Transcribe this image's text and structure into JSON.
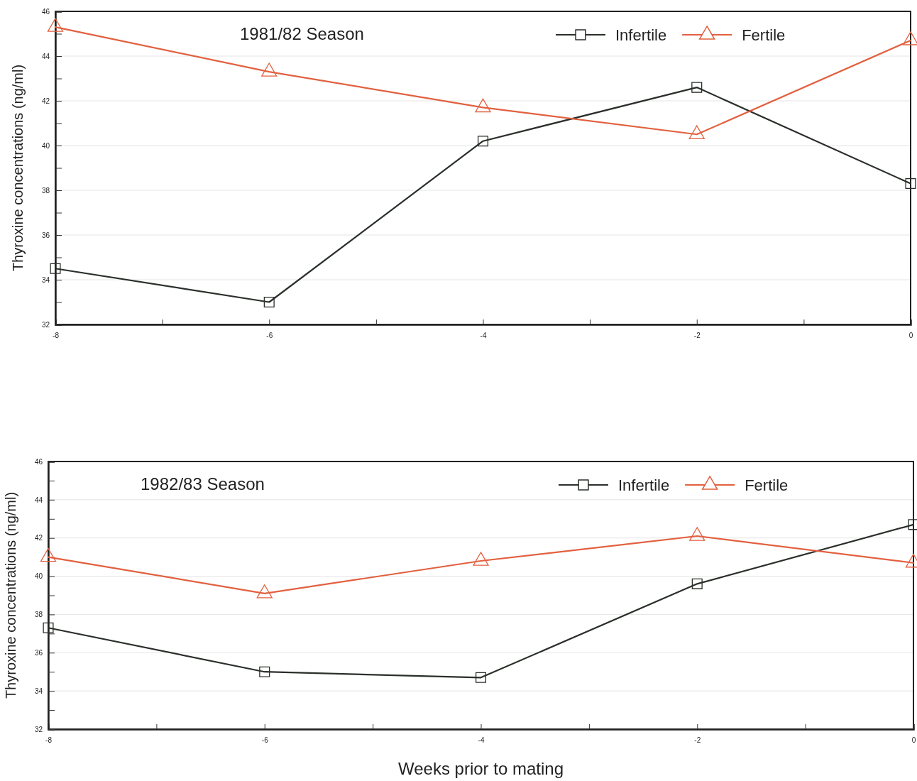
{
  "chart_data": [
    {
      "type": "line",
      "title": "1981/82 Season",
      "ylabel": "Thyroxine concentrations (ng/ml)",
      "x": [
        -8,
        -6,
        -4,
        -2,
        0
      ],
      "xlim": [
        -8,
        0
      ],
      "xticks": [
        -8,
        {
          "value": -7,
          "label": null
        },
        -6,
        {
          "value": -5,
          "label": null
        },
        -4,
        {
          "value": -3,
          "label": null
        },
        -2,
        {
          "value": -1,
          "label": null
        },
        0
      ],
      "ylim": [
        32,
        46
      ],
      "yticks": [
        32,
        {
          "value": 33,
          "label": null
        },
        34,
        {
          "value": 35,
          "label": null
        },
        36,
        {
          "value": 37,
          "label": null
        },
        38,
        {
          "value": 39,
          "label": null
        },
        40,
        {
          "value": 41,
          "label": null
        },
        42,
        {
          "value": 43,
          "label": null
        },
        44,
        {
          "value": 45,
          "label": null
        },
        46
      ],
      "grid": "y",
      "legend": "top right",
      "series": [
        {
          "name": "Infertile",
          "color": "#2a2f2a",
          "marker": "square",
          "values": [
            34.5,
            33.0,
            40.2,
            42.6,
            38.3
          ]
        },
        {
          "name": "Fertile",
          "color": "#e2603f",
          "marker": "triangle",
          "values": [
            45.3,
            43.3,
            41.7,
            40.5,
            44.7
          ]
        }
      ]
    },
    {
      "type": "line",
      "title": "1982/83 Season",
      "ylabel": "Thyroxine concentrations (ng/ml)",
      "xlabel": "Weeks prior to mating",
      "x": [
        -8,
        -6,
        -4,
        -2,
        0
      ],
      "xlim": [
        -8,
        0
      ],
      "xticks": [
        -8,
        {
          "value": -7,
          "label": null
        },
        -6,
        {
          "value": -5,
          "label": null
        },
        -4,
        {
          "value": -3,
          "label": null
        },
        -2,
        {
          "value": -1,
          "label": null
        },
        0
      ],
      "ylim": [
        32,
        46
      ],
      "yticks": [
        32,
        {
          "value": 33,
          "label": null
        },
        34,
        {
          "value": 35,
          "label": null
        },
        36,
        {
          "value": 37,
          "label": null
        },
        38,
        {
          "value": 39,
          "label": null
        },
        40,
        {
          "value": 41,
          "label": null
        },
        42,
        {
          "value": 43,
          "label": null
        },
        44,
        {
          "value": 45,
          "label": null
        },
        46
      ],
      "grid": "y",
      "legend": "top right",
      "series": [
        {
          "name": "Infertile",
          "color": "#2a2f2a",
          "marker": "square",
          "values": [
            37.3,
            35.0,
            34.7,
            39.6,
            42.7
          ]
        },
        {
          "name": "Fertile",
          "color": "#e2603f",
          "marker": "triangle",
          "values": [
            41.0,
            39.1,
            40.8,
            42.1,
            40.7
          ]
        }
      ]
    }
  ]
}
